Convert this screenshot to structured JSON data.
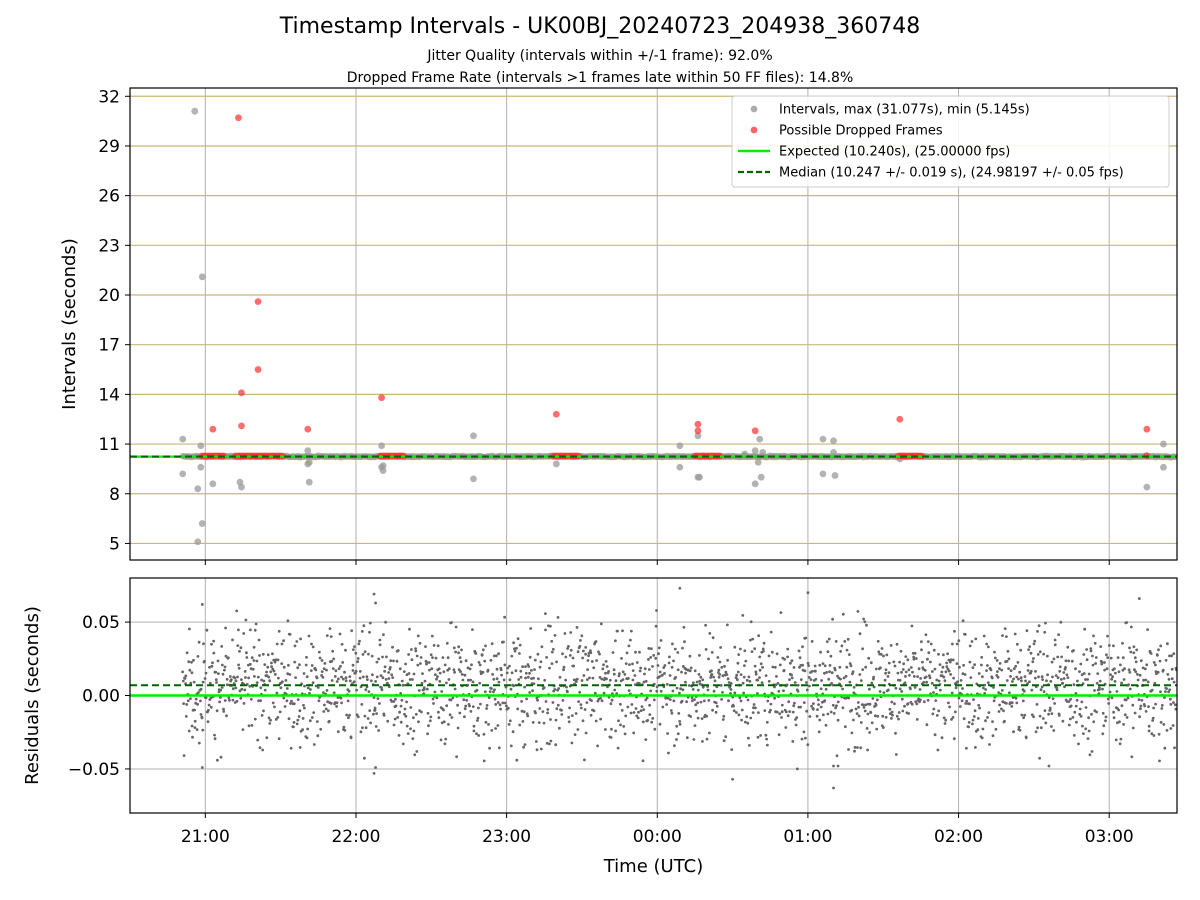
{
  "header": {
    "title": "Timestamp Intervals - UK00BJ_20240723_204938_360748",
    "subtitle1": "Jitter Quality (intervals within +/-1 frame): 92.0%",
    "subtitle2": "Dropped Frame Rate (intervals >1 frames late within 50 FF files): 14.8%"
  },
  "colors": {
    "intervals": "#999999",
    "dropped": "#ff3030",
    "expected": "#00ee00",
    "median": "#006400",
    "grid_top": "#c8b878",
    "grid": "#b0b0b0",
    "residual": "#666666"
  },
  "chart_data": [
    {
      "type": "scatter",
      "name": "intervals",
      "xlabel": "",
      "ylabel": "Intervals (seconds)",
      "xlim": [
        20.5,
        27.45
      ],
      "ylim": [
        4,
        32.5
      ],
      "yticks": [
        5,
        8,
        11,
        14,
        17,
        20,
        23,
        26,
        29,
        32
      ],
      "grid": true,
      "legend_position": "top-right",
      "legend": [
        "Intervals, max (31.077s), min (5.145s)",
        "Possible Dropped Frames",
        "Expected (10.240s), (25.00000 fps)",
        "Median (10.247 +/- 0.019 s), (24.98197 +/- 0.05 fps)"
      ],
      "expected": 10.24,
      "median": 10.247,
      "series": [
        {
          "name": "Intervals, max (31.077s), min (5.145s)",
          "points": [
            [
              20.85,
              11.3
            ],
            [
              20.85,
              9.2
            ],
            [
              20.93,
              31.1
            ],
            [
              20.95,
              5.1
            ],
            [
              20.95,
              8.3
            ],
            [
              20.97,
              10.9
            ],
            [
              20.97,
              9.6
            ],
            [
              20.98,
              21.1
            ],
            [
              20.98,
              6.2
            ],
            [
              21.05,
              8.6
            ],
            [
              21.23,
              8.7
            ],
            [
              21.24,
              8.4
            ],
            [
              21.68,
              10.6
            ],
            [
              21.68,
              9.8
            ],
            [
              21.69,
              9.9
            ],
            [
              21.69,
              8.7
            ],
            [
              22.17,
              10.9
            ],
            [
              22.17,
              9.6
            ],
            [
              22.18,
              9.4
            ],
            [
              22.18,
              9.7
            ],
            [
              22.78,
              11.5
            ],
            [
              22.78,
              8.9
            ],
            [
              23.33,
              9.8
            ],
            [
              24.15,
              10.9
            ],
            [
              24.15,
              9.6
            ],
            [
              24.27,
              11.5
            ],
            [
              24.27,
              9.0
            ],
            [
              24.28,
              9.0
            ],
            [
              24.58,
              10.4
            ],
            [
              24.58,
              10.3
            ],
            [
              24.65,
              10.6
            ],
            [
              24.65,
              8.6
            ],
            [
              24.67,
              9.9
            ],
            [
              24.68,
              11.3
            ],
            [
              24.69,
              9.0
            ],
            [
              24.7,
              10.5
            ],
            [
              25.1,
              11.3
            ],
            [
              25.1,
              9.2
            ],
            [
              25.17,
              10.5
            ],
            [
              25.17,
              11.2
            ],
            [
              25.18,
              9.1
            ],
            [
              25.61,
              10.1
            ],
            [
              27.25,
              8.4
            ],
            [
              27.36,
              11.0
            ],
            [
              27.36,
              9.6
            ]
          ]
        },
        {
          "name": "Possible Dropped Frames",
          "points": [
            [
              21.05,
              11.9
            ],
            [
              21.22,
              30.7
            ],
            [
              21.24,
              14.1
            ],
            [
              21.24,
              12.1
            ],
            [
              21.35,
              19.6
            ],
            [
              21.35,
              15.5
            ],
            [
              21.68,
              11.9
            ],
            [
              22.17,
              13.8
            ],
            [
              23.33,
              12.8
            ],
            [
              24.27,
              12.2
            ],
            [
              24.27,
              11.8
            ],
            [
              24.65,
              11.8
            ],
            [
              25.61,
              12.5
            ],
            [
              27.25,
              11.9
            ],
            [
              27.25,
              10.3
            ]
          ],
          "runs": [
            [
              20.98,
              21.13
            ],
            [
              21.2,
              21.52
            ],
            [
              22.16,
              22.32
            ],
            [
              23.31,
              23.48
            ],
            [
              24.25,
              24.42
            ],
            [
              25.6,
              25.76
            ]
          ],
          "run_value": 10.28
        }
      ]
    },
    {
      "type": "scatter",
      "name": "residuals",
      "xlabel": "Time (UTC)",
      "ylabel": "Residuals (seconds)",
      "xlim": [
        20.5,
        27.45
      ],
      "ylim": [
        -0.08,
        0.08
      ],
      "yticks": [
        -0.05,
        0.0,
        0.05
      ],
      "ytick_labels": [
        "−0.05",
        "0.00",
        "0.05"
      ],
      "xticks": [
        21,
        22,
        23,
        24,
        25,
        26,
        27
      ],
      "xtick_labels": [
        "21:00",
        "22:00",
        "23:00",
        "00:00",
        "01:00",
        "02:00",
        "03:00"
      ],
      "grid": true,
      "expected": 0.0,
      "median": 0.007,
      "spread": 0.02,
      "x_range": [
        20.85,
        27.45
      ],
      "sample_count": 2200,
      "extremes": [
        [
          20.98,
          0.062
        ],
        [
          20.98,
          -0.049
        ],
        [
          22.13,
          -0.049
        ],
        [
          22.13,
          0.063
        ],
        [
          22.12,
          0.069
        ],
        [
          22.12,
          -0.053
        ],
        [
          24.15,
          0.073
        ],
        [
          24.5,
          -0.057
        ],
        [
          24.93,
          -0.05
        ],
        [
          25.0,
          0.07
        ],
        [
          25.17,
          -0.063
        ],
        [
          25.17,
          -0.048
        ],
        [
          25.2,
          -0.048
        ],
        [
          26.6,
          -0.048
        ],
        [
          27.2,
          0.066
        ]
      ]
    }
  ]
}
